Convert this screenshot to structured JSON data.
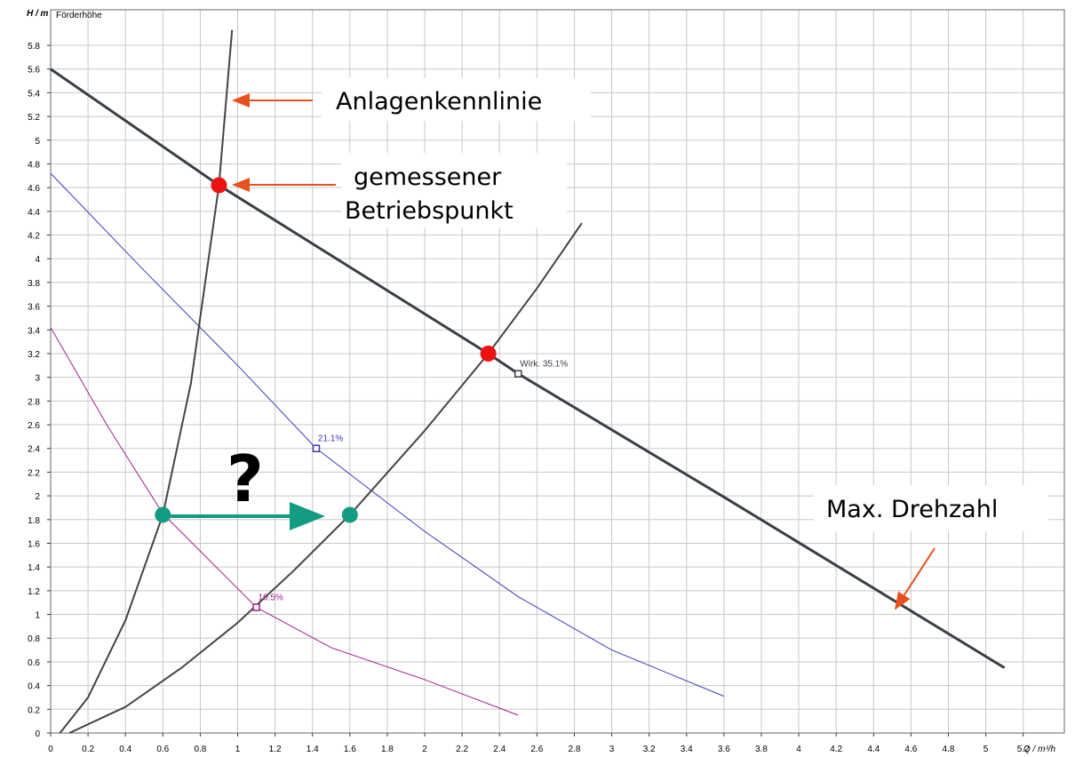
{
  "chart_data": {
    "type": "line",
    "y_label": "H / m",
    "y_sublabel": "Förderhöhe",
    "x_label": "Q / m³/h",
    "xlim": [
      0,
      5.42
    ],
    "ylim": [
      0,
      6.1
    ],
    "xticks": [
      0,
      0.2,
      0.4,
      0.6,
      0.8,
      1,
      1.2,
      1.4,
      1.6,
      1.8,
      2,
      2.2,
      2.4,
      2.6,
      2.8,
      3,
      3.2,
      3.4,
      3.6,
      3.8,
      4,
      4.2,
      4.4,
      4.6,
      4.8,
      5,
      5.2
    ],
    "yticks": [
      0,
      0.2,
      0.4,
      0.6,
      0.8,
      1,
      1.2,
      1.4,
      1.6,
      1.8,
      2,
      2.2,
      2.4,
      2.6,
      2.8,
      3,
      3.2,
      3.4,
      3.6,
      3.8,
      4,
      4.2,
      4.4,
      4.6,
      4.8,
      5,
      5.2,
      5.4,
      5.6,
      5.8
    ],
    "grid": true,
    "series": [
      {
        "color": "#3a3f45",
        "x": [
          0,
          0.9,
          2.34,
          2.5,
          3.6,
          5.1
        ],
        "values": [
          5.6,
          4.62,
          3.2,
          3.03,
          1.99,
          0.55
        ]
      },
      {
        "color": "#3b3bb8",
        "x": [
          0,
          0.5,
          1,
          1.42,
          2,
          2.5,
          3,
          3.6
        ],
        "values": [
          4.72,
          3.9,
          3.1,
          2.4,
          1.7,
          1.15,
          0.7,
          0.31
        ]
      },
      {
        "color": "#a0208c",
        "x": [
          0,
          0.3,
          0.6,
          1.1,
          1.5,
          2,
          2.5
        ],
        "values": [
          3.42,
          2.6,
          1.85,
          1.06,
          0.72,
          0.45,
          0.15
        ]
      },
      {
        "color": "#444444",
        "x": [
          0.05,
          0.2,
          0.4,
          0.6,
          0.75,
          0.9,
          0.97
        ],
        "values": [
          0,
          0.3,
          0.95,
          1.84,
          2.95,
          4.62,
          5.93
        ]
      },
      {
        "color": "#444444",
        "x": [
          0.1,
          0.4,
          0.7,
          1,
          1.3,
          1.6,
          2,
          2.34,
          2.6,
          2.84
        ],
        "values": [
          0,
          0.22,
          0.55,
          0.93,
          1.37,
          1.84,
          2.55,
          3.2,
          3.75,
          4.3
        ]
      }
    ],
    "markers": [
      {
        "x": 2.5,
        "y": 3.03,
        "label": "Wirk.  35.1%",
        "color": "#3a3f45"
      },
      {
        "x": 1.42,
        "y": 2.4,
        "label": "21.1%",
        "color": "#3b3bb8"
      },
      {
        "x": 1.1,
        "y": 1.06,
        "label": "10.5%",
        "color": "#a0208c"
      }
    ],
    "points": [
      {
        "x": 0.9,
        "y": 4.62,
        "color": "#ee1111"
      },
      {
        "x": 2.34,
        "y": 3.2,
        "color": "#ee1111"
      },
      {
        "x": 0.6,
        "y": 1.84,
        "color": "#139c82"
      },
      {
        "x": 1.6,
        "y": 1.84,
        "color": "#139c82"
      }
    ],
    "annotations": {
      "system_curve": "Anlagenkennlinie",
      "operating_point": [
        "gemessener",
        "Betriebspunkt"
      ],
      "max_speed": "Max. Drehzahl",
      "question": "?"
    }
  }
}
